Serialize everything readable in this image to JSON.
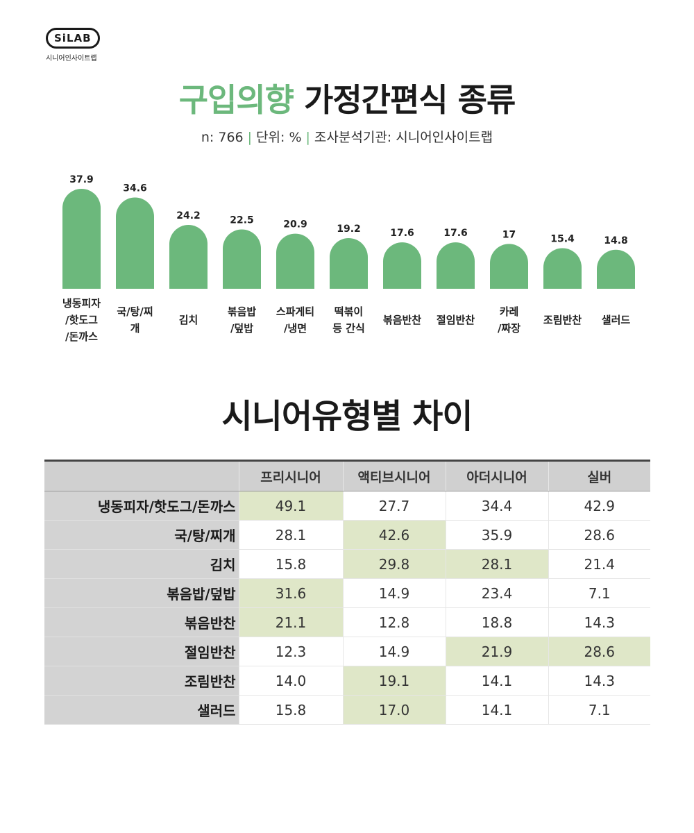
{
  "logo": {
    "mark": "SiLAB",
    "subtitle": "시니어인사이트랩"
  },
  "title": {
    "accent": "구입의향",
    "rest": " 가정간편식 종류"
  },
  "subtitle": {
    "n": "n: 766",
    "unit": "단위: %",
    "source": "조사분석기관: 시니어인사이트랩",
    "separator": "|"
  },
  "colors": {
    "accent": "#6cb87c",
    "highlight": "#dfe7c8",
    "header_bg": "#d0d0d0"
  },
  "chart_data": {
    "type": "bar",
    "categories": [
      [
        "냉동피자",
        "/핫도그",
        "/돈까스"
      ],
      [
        "국/탕/찌",
        "개"
      ],
      [
        "김치"
      ],
      [
        "볶음밥",
        "/덮밥"
      ],
      [
        "스파게티",
        "/냉면"
      ],
      [
        "떡볶이",
        "등 간식"
      ],
      [
        "볶음반찬"
      ],
      [
        "절임반찬"
      ],
      [
        "카레",
        "/짜장"
      ],
      [
        "조림반찬"
      ],
      [
        "샐러드"
      ]
    ],
    "values": [
      37.9,
      34.6,
      24.2,
      22.5,
      20.9,
      19.2,
      17.6,
      17.6,
      17,
      15.4,
      14.8
    ],
    "value_labels": [
      "37.9",
      "34.6",
      "24.2",
      "22.5",
      "20.9",
      "19.2",
      "17.6",
      "17.6",
      "17",
      "15.4",
      "14.8"
    ],
    "title": "구입의향 가정간편식 종류",
    "grid": false,
    "color": "#6cb87c"
  },
  "section2_title": "시니어유형별 차이",
  "table": {
    "columns": [
      "",
      "프리시니어",
      "액티브시니어",
      "아더시니어",
      "실버"
    ],
    "rows": [
      {
        "label": "냉동피자/핫도그/돈까스",
        "values": [
          "49.1",
          "27.7",
          "34.4",
          "42.9"
        ],
        "highlight": [
          true,
          false,
          false,
          false
        ]
      },
      {
        "label": "국/탕/찌개",
        "values": [
          "28.1",
          "42.6",
          "35.9",
          "28.6"
        ],
        "highlight": [
          false,
          true,
          false,
          false
        ]
      },
      {
        "label": "김치",
        "values": [
          "15.8",
          "29.8",
          "28.1",
          "21.4"
        ],
        "highlight": [
          false,
          true,
          true,
          false
        ]
      },
      {
        "label": "볶음밥/덮밥",
        "values": [
          "31.6",
          "14.9",
          "23.4",
          "7.1"
        ],
        "highlight": [
          true,
          false,
          false,
          false
        ]
      },
      {
        "label": "볶음반찬",
        "values": [
          "21.1",
          "12.8",
          "18.8",
          "14.3"
        ],
        "highlight": [
          true,
          false,
          false,
          false
        ]
      },
      {
        "label": "절임반찬",
        "values": [
          "12.3",
          "14.9",
          "21.9",
          "28.6"
        ],
        "highlight": [
          false,
          false,
          true,
          true
        ]
      },
      {
        "label": "조림반찬",
        "values": [
          "14.0",
          "19.1",
          "14.1",
          "14.3"
        ],
        "highlight": [
          false,
          true,
          false,
          false
        ]
      },
      {
        "label": "샐러드",
        "values": [
          "15.8",
          "17.0",
          "14.1",
          "7.1"
        ],
        "highlight": [
          false,
          true,
          false,
          false
        ]
      }
    ]
  }
}
